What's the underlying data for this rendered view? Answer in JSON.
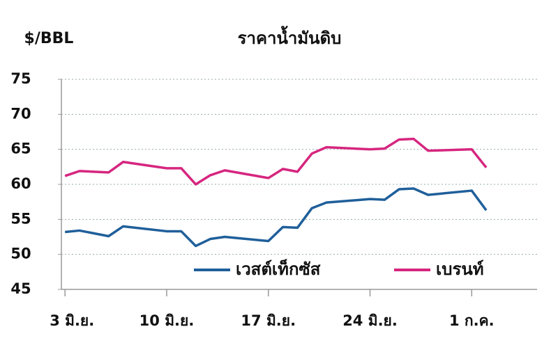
{
  "chart_data": {
    "type": "line",
    "title": "ราคาน้ำมันดิบ",
    "y_label": "$/BBL",
    "x": [
      0,
      1,
      3,
      4,
      7,
      8,
      9,
      10,
      11,
      14,
      15,
      16,
      17,
      18,
      21,
      22,
      23,
      24,
      25,
      28,
      29
    ],
    "xlim": [
      -0.25,
      32.5
    ],
    "xticks": [
      {
        "value": 0,
        "label": "3 มิ.ย."
      },
      {
        "value": 7,
        "label": "10 มิ.ย."
      },
      {
        "value": 14,
        "label": "17 มิ.ย."
      },
      {
        "value": 21,
        "label": "24 มิ.ย."
      },
      {
        "value": 28,
        "label": "1 ก.ค."
      }
    ],
    "ylim": [
      45,
      75
    ],
    "yticks": [
      45,
      50,
      55,
      60,
      65,
      70,
      75
    ],
    "grid": true,
    "series": [
      {
        "name": "เวสต์เท็กซัส",
        "color": "#1f5f9a",
        "values": [
          53.2,
          53.4,
          52.6,
          54.0,
          53.3,
          53.3,
          51.2,
          52.2,
          52.5,
          51.9,
          53.9,
          53.8,
          56.6,
          57.4,
          57.9,
          57.8,
          59.3,
          59.4,
          58.5,
          59.1,
          56.3
        ]
      },
      {
        "name": "เบรนท์",
        "color": "#d6267f",
        "values": [
          61.2,
          61.9,
          61.7,
          63.2,
          62.3,
          62.3,
          60.0,
          61.3,
          62.0,
          60.9,
          62.2,
          61.8,
          64.4,
          65.3,
          65.0,
          65.1,
          66.4,
          66.5,
          64.8,
          65.0,
          62.4
        ]
      }
    ]
  }
}
